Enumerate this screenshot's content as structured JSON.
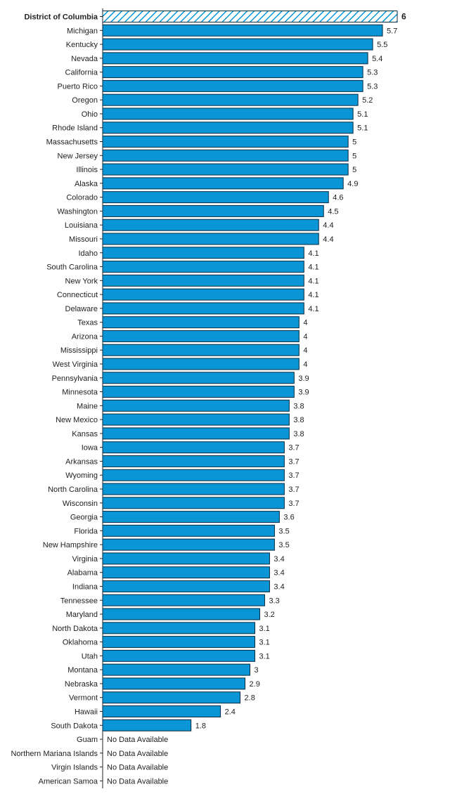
{
  "chart_data": {
    "type": "bar",
    "orientation": "horizontal",
    "categories": [
      "District of Columbia",
      "Michigan",
      "Kentucky",
      "Nevada",
      "California",
      "Puerto Rico",
      "Oregon",
      "Ohio",
      "Rhode Island",
      "Massachusetts",
      "New Jersey",
      "Illinois",
      "Alaska",
      "Colorado",
      "Washington",
      "Louisiana",
      "Missouri",
      "Idaho",
      "South Carolina",
      "New York",
      "Connecticut",
      "Delaware",
      "Texas",
      "Arizona",
      "Mississippi",
      "West Virginia",
      "Pennsylvania",
      "Minnesota",
      "Maine",
      "New Mexico",
      "Kansas",
      "Iowa",
      "Arkansas",
      "Wyoming",
      "North Carolina",
      "Wisconsin",
      "Georgia",
      "Florida",
      "New Hampshire",
      "Virginia",
      "Alabama",
      "Indiana",
      "Tennessee",
      "Maryland",
      "North Dakota",
      "Oklahoma",
      "Utah",
      "Montana",
      "Nebraska",
      "Vermont",
      "Hawaii",
      "South Dakota",
      "Guam",
      "Northern Mariana Islands",
      "Virgin Islands",
      "American Samoa"
    ],
    "values": [
      6,
      5.7,
      5.5,
      5.4,
      5.3,
      5.3,
      5.2,
      5.1,
      5.1,
      5,
      5,
      5,
      4.9,
      4.6,
      4.5,
      4.4,
      4.4,
      4.1,
      4.1,
      4.1,
      4.1,
      4.1,
      4,
      4,
      4,
      4,
      3.9,
      3.9,
      3.8,
      3.8,
      3.8,
      3.7,
      3.7,
      3.7,
      3.7,
      3.7,
      3.6,
      3.5,
      3.5,
      3.4,
      3.4,
      3.4,
      3.3,
      3.2,
      3.1,
      3.1,
      3.1,
      3,
      2.9,
      2.8,
      2.4,
      1.8,
      null,
      null,
      null,
      null
    ],
    "highlight": "District of Columbia",
    "no_data_label": "No Data Available",
    "xlim": [
      0,
      6
    ],
    "grid": false,
    "colors": {
      "bar": "#0a96d6",
      "bar_stroke": "#0b2a3e",
      "highlight_hatch": "#0a96d6",
      "highlight_bg": "#ffffff",
      "axis": "#222222"
    }
  }
}
